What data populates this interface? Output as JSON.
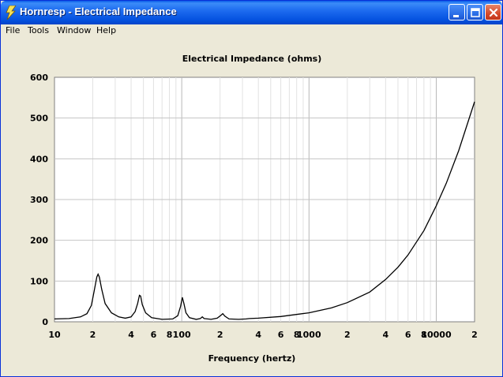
{
  "window": {
    "title": "Hornresp - Electrical Impedance",
    "app_icon": "lightning-icon",
    "controls": [
      "minimize-icon",
      "maximize-icon",
      "close-icon"
    ]
  },
  "menu": {
    "items": [
      {
        "id": "file",
        "label": "File"
      },
      {
        "id": "tools",
        "label": "Tools"
      },
      {
        "id": "window",
        "label": "Window"
      },
      {
        "id": "help",
        "label": "Help"
      }
    ]
  },
  "chart_data": {
    "type": "line",
    "title": "Electrical Impedance (ohms)",
    "xlabel": "Frequency (hertz)",
    "ylabel": "",
    "x_scale": "log",
    "xlim": [
      10,
      20000
    ],
    "ylim": [
      0,
      600
    ],
    "y_ticks": [
      0,
      100,
      200,
      300,
      400,
      500,
      600
    ],
    "x_tick_labels": [
      {
        "value": 10,
        "label": "10"
      },
      {
        "value": 20,
        "label": "2"
      },
      {
        "value": 40,
        "label": "4"
      },
      {
        "value": 60,
        "label": "6"
      },
      {
        "value": 80,
        "label": "8"
      },
      {
        "value": 100,
        "label": "100"
      },
      {
        "value": 200,
        "label": "2"
      },
      {
        "value": 400,
        "label": "4"
      },
      {
        "value": 600,
        "label": "6"
      },
      {
        "value": 800,
        "label": "8"
      },
      {
        "value": 1000,
        "label": "1000"
      },
      {
        "value": 2000,
        "label": "2"
      },
      {
        "value": 4000,
        "label": "4"
      },
      {
        "value": 6000,
        "label": "6"
      },
      {
        "value": 8000,
        "label": "8"
      },
      {
        "value": 10000,
        "label": "10000"
      },
      {
        "value": 20000,
        "label": "2"
      }
    ],
    "grid": true,
    "line_color": "#000000",
    "series": [
      {
        "points": [
          [
            10,
            7
          ],
          [
            13,
            8
          ],
          [
            16,
            12
          ],
          [
            18,
            20
          ],
          [
            19.5,
            40
          ],
          [
            20.5,
            75
          ],
          [
            21.5,
            110
          ],
          [
            22,
            117
          ],
          [
            22.5,
            110
          ],
          [
            23.5,
            80
          ],
          [
            25,
            45
          ],
          [
            28,
            22
          ],
          [
            32,
            12
          ],
          [
            36,
            9
          ],
          [
            40,
            12
          ],
          [
            43,
            25
          ],
          [
            45,
            45
          ],
          [
            46.5,
            65
          ],
          [
            47.5,
            63
          ],
          [
            49,
            42
          ],
          [
            52,
            22
          ],
          [
            58,
            10
          ],
          [
            70,
            6
          ],
          [
            85,
            7
          ],
          [
            93,
            15
          ],
          [
            98,
            38
          ],
          [
            101,
            60
          ],
          [
            104,
            45
          ],
          [
            108,
            22
          ],
          [
            115,
            10
          ],
          [
            130,
            6
          ],
          [
            140,
            8
          ],
          [
            145,
            12
          ],
          [
            150,
            8
          ],
          [
            170,
            6
          ],
          [
            190,
            9
          ],
          [
            205,
            17
          ],
          [
            210,
            20
          ],
          [
            218,
            14
          ],
          [
            235,
            7
          ],
          [
            280,
            6
          ],
          [
            320,
            7
          ],
          [
            340,
            8
          ],
          [
            400,
            9
          ],
          [
            600,
            13
          ],
          [
            1000,
            22
          ],
          [
            1500,
            34
          ],
          [
            2000,
            47
          ],
          [
            3000,
            73
          ],
          [
            4000,
            104
          ],
          [
            5000,
            134
          ],
          [
            6000,
            164
          ],
          [
            8000,
            224
          ],
          [
            10000,
            285
          ],
          [
            12000,
            340
          ],
          [
            15000,
            420
          ],
          [
            20000,
            540
          ]
        ]
      }
    ]
  }
}
